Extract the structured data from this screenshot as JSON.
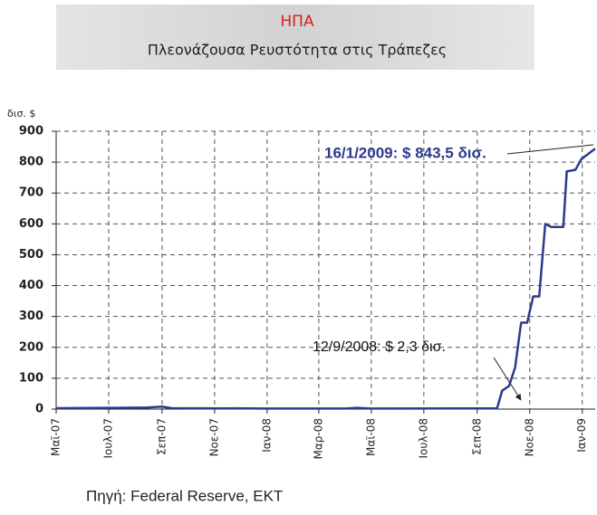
{
  "chart_data": {
    "type": "line",
    "title": "ΗΠΑ",
    "subtitle": "Πλεονάζουσα Ρευστότητα  στις Τράπεζες",
    "y_label": "δισ. $",
    "source": "Πηγή: Federal Reserve, ΕΚΤ",
    "annotations": [
      "16/1/2009: $ 843,5 δισ.",
      "12/9/2008: $ 2,3 δισ."
    ],
    "x": [
      "2007-05-01",
      "2007-07-01",
      "2007-08-15",
      "2007-09-01",
      "2007-09-12",
      "2008-01-01",
      "2008-04-01",
      "2008-04-15",
      "2008-05-01",
      "2008-09-12",
      "2008-09-24",
      "2008-09-30",
      "2008-10-08",
      "2008-10-15",
      "2008-10-22",
      "2008-10-29",
      "2008-11-05",
      "2008-11-12",
      "2008-11-19",
      "2008-11-26",
      "2008-12-10",
      "2008-12-14",
      "2008-12-24",
      "2008-12-31",
      "2009-01-16"
    ],
    "series": [
      {
        "color": "#2e3a8c",
        "values": [
          3,
          4,
          5,
          8,
          3,
          2,
          2,
          4,
          2,
          2.3,
          2.3,
          60,
          75,
          135,
          280,
          280,
          365,
          365,
          600,
          590,
          590,
          770,
          775,
          810,
          843.5
        ]
      }
    ],
    "xlim": [
      "2007-05-01",
      "2009-01-16"
    ],
    "xticks": [
      {
        "value": "2007-05-01",
        "label": "Μαϊ-07"
      },
      {
        "value": "2007-07-01",
        "label": "Ιουλ-07"
      },
      {
        "value": "2007-09-01",
        "label": "Σεπ-07"
      },
      {
        "value": "2007-11-01",
        "label": "Νοε-07"
      },
      {
        "value": "2008-01-01",
        "label": "Ιαν-08"
      },
      {
        "value": "2008-03-01",
        "label": "Μαρ-08"
      },
      {
        "value": "2008-05-01",
        "label": "Μαϊ-08"
      },
      {
        "value": "2008-07-01",
        "label": "Ιουλ-08"
      },
      {
        "value": "2008-09-01",
        "label": "Σεπ-08"
      },
      {
        "value": "2008-11-01",
        "label": "Νοε-08"
      },
      {
        "value": "2009-01-01",
        "label": "Ιαν-09"
      }
    ],
    "ylim": [
      0,
      900
    ],
    "yticks": [
      0,
      100,
      200,
      300,
      400,
      500,
      600,
      700,
      800,
      900
    ],
    "grid": true
  }
}
